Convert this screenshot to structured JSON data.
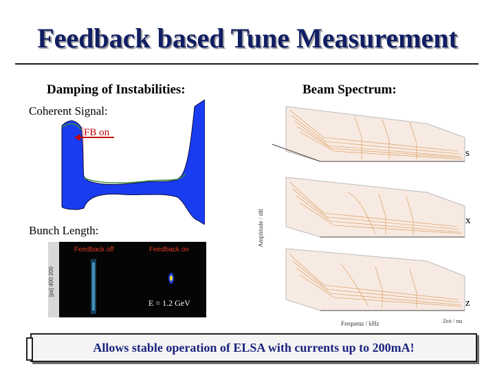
{
  "title": "Feedback based Tune Measurement",
  "left_column": {
    "heading": "Damping of Instabilities:",
    "coherent_signal_label": "Coherent Signal:",
    "fb_on_label": "FB on",
    "bunch_length_label": "Bunch Length:",
    "bunch_panel": {
      "caption_off": "Feedback off",
      "caption_on": "Feedback on",
      "axis_ticks": "[ps]  400  200",
      "energy": "E = 1.2 GeV"
    }
  },
  "right_column": {
    "heading": "Beam Spectrum:",
    "planes": [
      "s",
      "x",
      "z"
    ],
    "ylabel": "Amplitude / dB",
    "xlabel": "Frequenz / kHz",
    "zlabel": "Zeit / ms"
  },
  "footer": {
    "text": "Allows stable operation of ELSA with currents up to 200mA!"
  },
  "colors": {
    "title": "#101e63",
    "signal_fill": "#1a3cf0",
    "fb_marker": "#c00000",
    "footer_text": "#1a237e"
  }
}
